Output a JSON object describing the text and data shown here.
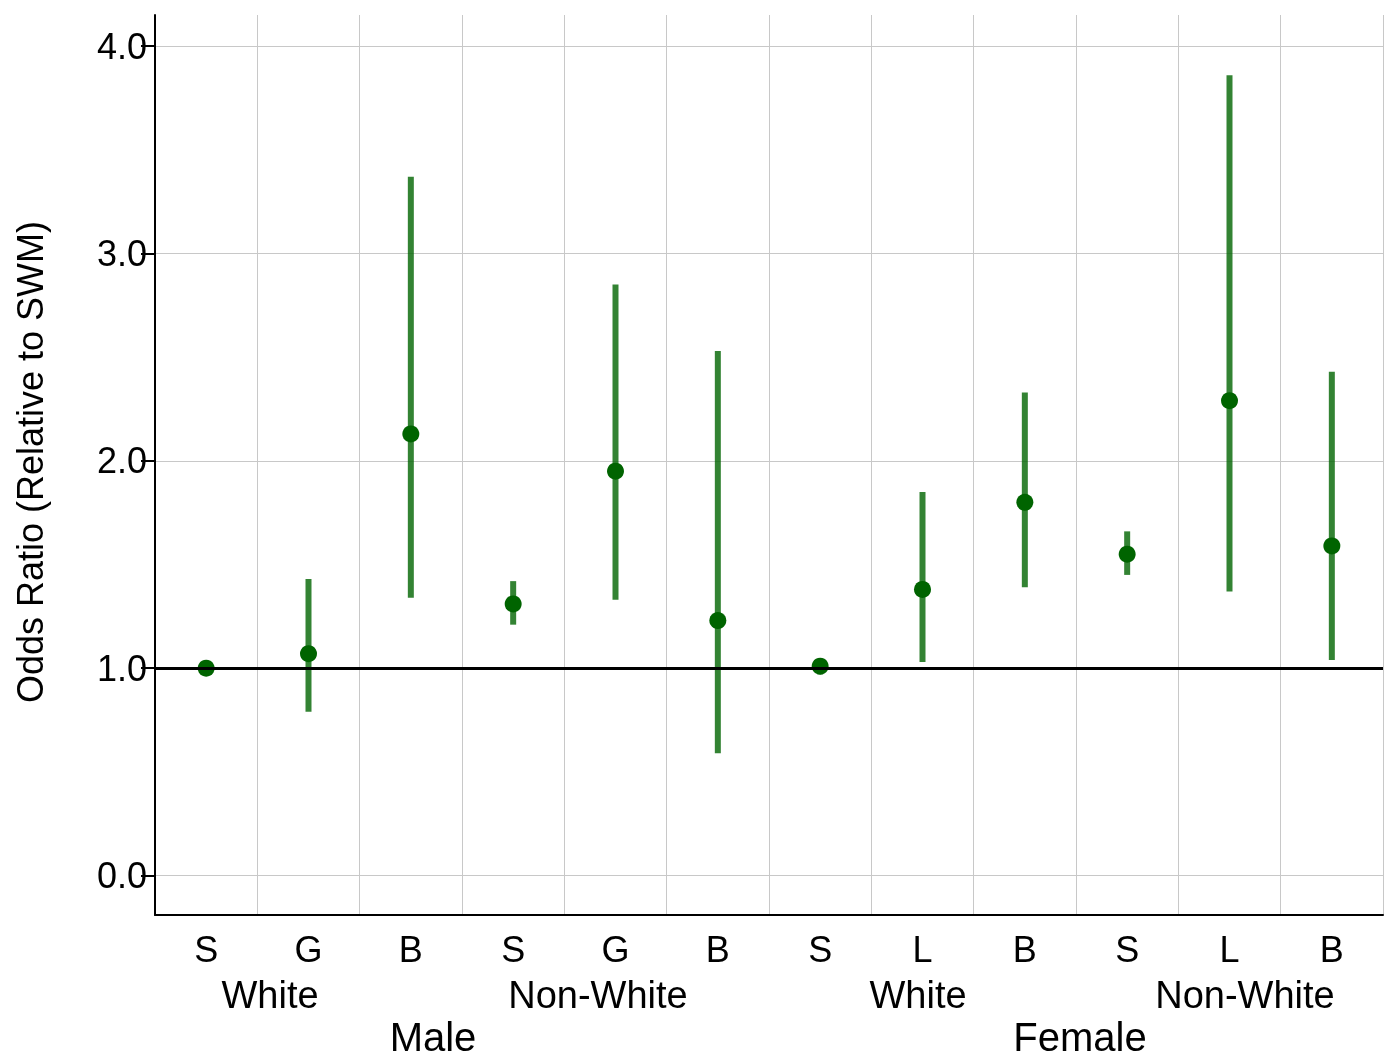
{
  "chart_data": {
    "type": "scatter",
    "ylabel": "Odds Ratio (Relative to SWM)",
    "categories": [
      "S",
      "G",
      "B",
      "S",
      "G",
      "B",
      "S",
      "L",
      "B",
      "S",
      "L",
      "B"
    ],
    "series": [
      {
        "color": "#006400",
        "values": [
          1.0,
          1.07,
          2.13,
          1.31,
          1.95,
          1.23,
          1.01,
          1.38,
          1.8,
          1.55,
          2.29,
          1.59
        ],
        "errors": [
          null,
          [
            0.79,
            1.43
          ],
          [
            1.34,
            3.37
          ],
          [
            1.21,
            1.42
          ],
          [
            1.33,
            2.85
          ],
          [
            0.59,
            2.53
          ],
          [
            0.97,
            1.04
          ],
          [
            1.03,
            1.85
          ],
          [
            1.39,
            2.33
          ],
          [
            1.45,
            1.66
          ],
          [
            1.37,
            3.86
          ],
          [
            1.04,
            2.43
          ]
        ]
      }
    ],
    "ylim": [
      -0.19,
      4.15
    ],
    "yticks": [
      {
        "value": 0,
        "label": "0.0"
      },
      {
        "value": 1,
        "label": "1.0"
      },
      {
        "value": 2,
        "label": "2.0"
      },
      {
        "value": 3,
        "label": "3.0"
      },
      {
        "value": 4,
        "label": "4.0"
      }
    ],
    "ref_lines": [
      {
        "axis": "y",
        "value": 1,
        "color": "#000000"
      }
    ],
    "annotations": [
      "White",
      "Non-White",
      "Male",
      "White",
      "Non-White",
      "Female"
    ],
    "grid": true,
    "marker": "circle"
  }
}
